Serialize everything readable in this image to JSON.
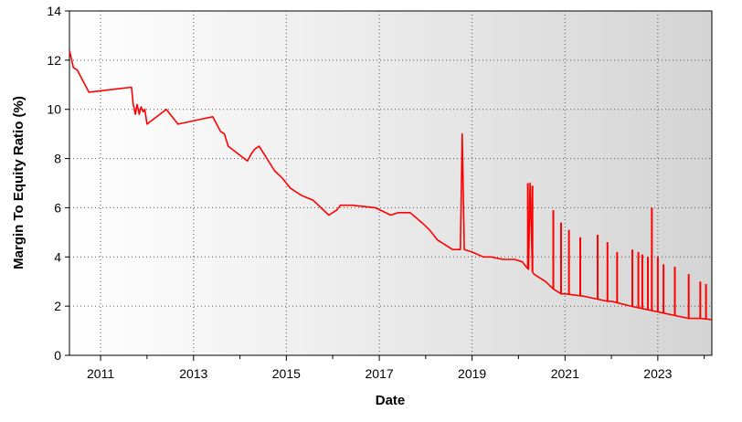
{
  "chart_data": {
    "type": "line",
    "xlabel": "Date",
    "ylabel": "Margin To Equity Ratio (%)",
    "ylim": [
      0,
      14
    ],
    "xlim": [
      "2010-05-01",
      "2024-03-01"
    ],
    "y_ticks": [
      "0",
      "2",
      "4",
      "6",
      "8",
      "10",
      "12",
      "14"
    ],
    "x_ticks": [
      "2011",
      "2013",
      "2015",
      "2017",
      "2019",
      "2021",
      "2023"
    ],
    "grid": true,
    "background": "gradient-white-to-gray",
    "series": [
      {
        "color": "#ff0000",
        "x": [
          "2010-05-01",
          "2010-06-01",
          "2010-07-01",
          "2010-10-01",
          "2011-09-01",
          "2011-09-15",
          "2011-10-01",
          "2011-10-15",
          "2011-11-01",
          "2011-11-15",
          "2011-12-01",
          "2011-12-15",
          "2012-01-01",
          "2012-06-01",
          "2012-09-01",
          "2013-03-01",
          "2013-06-01",
          "2013-08-01",
          "2013-09-01",
          "2013-10-01",
          "2014-03-01",
          "2014-04-01",
          "2014-05-01",
          "2014-06-01",
          "2014-10-01",
          "2014-12-01",
          "2015-02-01",
          "2015-05-01",
          "2015-08-01",
          "2015-12-01",
          "2016-02-01",
          "2016-03-01",
          "2016-06-01",
          "2016-12-01",
          "2017-04-01",
          "2017-06-01",
          "2017-09-01",
          "2017-12-01",
          "2018-02-01",
          "2018-04-01",
          "2018-06-01",
          "2018-08-01",
          "2018-10-01",
          "2018-10-15",
          "2018-11-01",
          "2019-01-01",
          "2019-04-01",
          "2019-06-01",
          "2019-09-01",
          "2019-12-01",
          "2020-02-01",
          "2020-03-01",
          "2020-03-20",
          "2020-04-01",
          "2020-04-20",
          "2020-05-01",
          "2020-08-01",
          "2020-10-01",
          "2020-12-01",
          "2021-01-01",
          "2021-06-01",
          "2021-09-01",
          "2021-12-01",
          "2022-01-01",
          "2022-06-01",
          "2022-09-01",
          "2022-12-01",
          "2023-03-01",
          "2023-06-01",
          "2023-09-01",
          "2023-12-01",
          "2024-03-01"
        ],
        "y": [
          12.4,
          11.7,
          11.6,
          10.7,
          10.9,
          10.2,
          9.8,
          10.2,
          9.8,
          10.1,
          9.9,
          10.0,
          9.4,
          10.0,
          9.4,
          9.6,
          9.7,
          9.1,
          9.0,
          8.5,
          7.9,
          8.2,
          8.4,
          8.5,
          7.5,
          7.2,
          6.8,
          6.5,
          6.3,
          5.7,
          5.9,
          6.1,
          6.1,
          6.0,
          5.7,
          5.8,
          5.8,
          5.4,
          5.1,
          4.7,
          4.5,
          4.3,
          4.3,
          9.0,
          4.3,
          4.2,
          4.0,
          4.0,
          3.9,
          3.9,
          3.8,
          3.6,
          3.5,
          7.0,
          3.4,
          3.3,
          3.0,
          2.7,
          2.5,
          2.5,
          2.4,
          2.3,
          2.2,
          2.2,
          2.0,
          1.9,
          1.8,
          1.7,
          1.6,
          1.5,
          1.5,
          1.45
        ]
      }
    ],
    "spikes": [
      {
        "x": "2018-10-15",
        "y": 9.0
      },
      {
        "x": "2020-03-15",
        "y": 7.0
      },
      {
        "x": "2020-04-20",
        "y": 6.9
      },
      {
        "x": "2020-10-01",
        "y": 5.9
      },
      {
        "x": "2020-12-01",
        "y": 5.4
      },
      {
        "x": "2021-02-01",
        "y": 5.1
      },
      {
        "x": "2021-05-01",
        "y": 4.8
      },
      {
        "x": "2021-09-15",
        "y": 4.9
      },
      {
        "x": "2021-12-01",
        "y": 4.6
      },
      {
        "x": "2022-02-15",
        "y": 4.2
      },
      {
        "x": "2022-06-15",
        "y": 4.3
      },
      {
        "x": "2022-08-01",
        "y": 4.2
      },
      {
        "x": "2022-09-01",
        "y": 4.1
      },
      {
        "x": "2022-10-15",
        "y": 4.0
      },
      {
        "x": "2022-11-15",
        "y": 6.0
      },
      {
        "x": "2023-01-01",
        "y": 4.0
      },
      {
        "x": "2023-02-15",
        "y": 3.7
      },
      {
        "x": "2023-05-15",
        "y": 3.6
      },
      {
        "x": "2023-09-01",
        "y": 3.3
      },
      {
        "x": "2023-12-01",
        "y": 3.0
      },
      {
        "x": "2024-01-15",
        "y": 2.9
      }
    ]
  }
}
